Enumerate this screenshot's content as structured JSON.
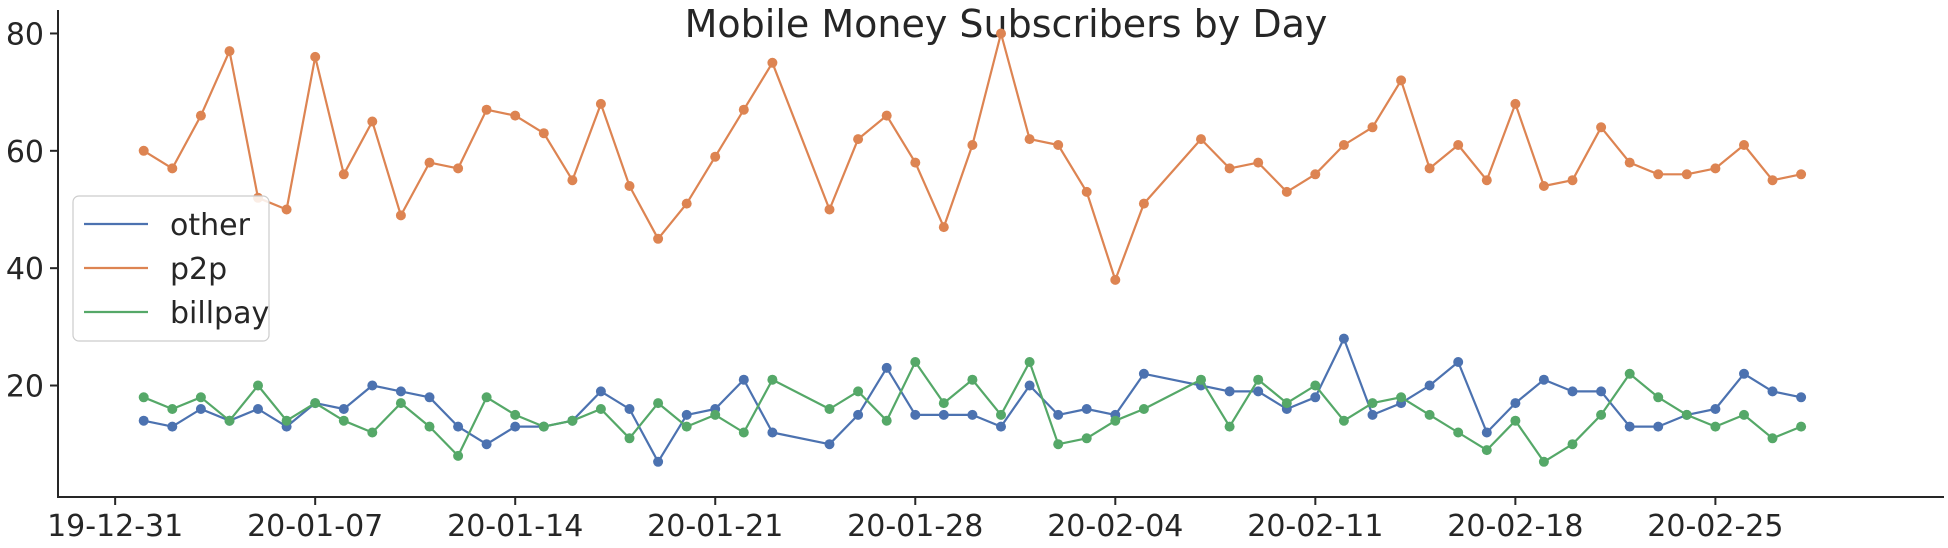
{
  "chart_data": {
    "type": "line",
    "title": "Mobile Money Subscribers by Day",
    "xlabel": "",
    "ylabel": "",
    "x_tick_labels": [
      "19-12-31",
      "20-01-07",
      "20-01-14",
      "20-01-21",
      "20-01-28",
      "20-02-04",
      "20-02-11",
      "20-02-18",
      "20-02-25"
    ],
    "x_tick_dates": [
      "2019-12-31",
      "2020-01-07",
      "2020-01-14",
      "2020-01-21",
      "2020-01-28",
      "2020-02-04",
      "2020-02-11",
      "2020-02-18",
      "2020-02-25"
    ],
    "xlim": [
      "2019-12-29",
      "2020-03-04"
    ],
    "y_ticks": [
      20,
      40,
      60,
      80
    ],
    "ylim": [
      1,
      84
    ],
    "grid": false,
    "legend_position": "center-left",
    "markers": true,
    "series": [
      {
        "name": "other",
        "color": "#4c72b0",
        "points": [
          [
            "2020-01-01",
            14
          ],
          [
            "2020-01-02",
            13
          ],
          [
            "2020-01-03",
            16
          ],
          [
            "2020-01-04",
            14
          ],
          [
            "2020-01-05",
            16
          ],
          [
            "2020-01-06",
            13
          ],
          [
            "2020-01-07",
            17
          ],
          [
            "2020-01-08",
            16
          ],
          [
            "2020-01-09",
            20
          ],
          [
            "2020-01-10",
            19
          ],
          [
            "2020-01-11",
            18
          ],
          [
            "2020-01-12",
            13
          ],
          [
            "2020-01-13",
            10
          ],
          [
            "2020-01-14",
            13
          ],
          [
            "2020-01-15",
            13
          ],
          [
            "2020-01-16",
            14
          ],
          [
            "2020-01-17",
            19
          ],
          [
            "2020-01-18",
            16
          ],
          [
            "2020-01-19",
            7
          ],
          [
            "2020-01-20",
            15
          ],
          [
            "2020-01-21",
            16
          ],
          [
            "2020-01-22",
            21
          ],
          [
            "2020-01-23",
            12
          ],
          [
            "2020-01-25",
            10
          ],
          [
            "2020-01-26",
            15
          ],
          [
            "2020-01-27",
            23
          ],
          [
            "2020-01-28",
            15
          ],
          [
            "2020-01-29",
            15
          ],
          [
            "2020-01-30",
            15
          ],
          [
            "2020-01-31",
            13
          ],
          [
            "2020-02-01",
            20
          ],
          [
            "2020-02-02",
            15
          ],
          [
            "2020-02-03",
            16
          ],
          [
            "2020-02-04",
            15
          ],
          [
            "2020-02-05",
            22
          ],
          [
            "2020-02-07",
            20
          ],
          [
            "2020-02-08",
            19
          ],
          [
            "2020-02-09",
            19
          ],
          [
            "2020-02-10",
            16
          ],
          [
            "2020-02-11",
            18
          ],
          [
            "2020-02-12",
            28
          ],
          [
            "2020-02-13",
            15
          ],
          [
            "2020-02-14",
            17
          ],
          [
            "2020-02-15",
            20
          ],
          [
            "2020-02-16",
            24
          ],
          [
            "2020-02-17",
            12
          ],
          [
            "2020-02-18",
            17
          ],
          [
            "2020-02-19",
            21
          ],
          [
            "2020-02-20",
            19
          ],
          [
            "2020-02-21",
            19
          ],
          [
            "2020-02-22",
            13
          ],
          [
            "2020-02-23",
            13
          ],
          [
            "2020-02-24",
            15
          ],
          [
            "2020-02-25",
            16
          ],
          [
            "2020-02-26",
            22
          ],
          [
            "2020-02-27",
            19
          ],
          [
            "2020-02-28",
            18
          ]
        ]
      },
      {
        "name": "p2p",
        "color": "#dd8452",
        "points": [
          [
            "2020-01-01",
            60
          ],
          [
            "2020-01-02",
            57
          ],
          [
            "2020-01-03",
            66
          ],
          [
            "2020-01-04",
            77
          ],
          [
            "2020-01-05",
            52
          ],
          [
            "2020-01-06",
            50
          ],
          [
            "2020-01-07",
            76
          ],
          [
            "2020-01-08",
            56
          ],
          [
            "2020-01-09",
            65
          ],
          [
            "2020-01-10",
            49
          ],
          [
            "2020-01-11",
            58
          ],
          [
            "2020-01-12",
            57
          ],
          [
            "2020-01-13",
            67
          ],
          [
            "2020-01-14",
            66
          ],
          [
            "2020-01-15",
            63
          ],
          [
            "2020-01-16",
            55
          ],
          [
            "2020-01-17",
            68
          ],
          [
            "2020-01-18",
            54
          ],
          [
            "2020-01-19",
            45
          ],
          [
            "2020-01-20",
            51
          ],
          [
            "2020-01-21",
            59
          ],
          [
            "2020-01-22",
            67
          ],
          [
            "2020-01-23",
            75
          ],
          [
            "2020-01-25",
            50
          ],
          [
            "2020-01-26",
            62
          ],
          [
            "2020-01-27",
            66
          ],
          [
            "2020-01-28",
            58
          ],
          [
            "2020-01-29",
            47
          ],
          [
            "2020-01-30",
            61
          ],
          [
            "2020-01-31",
            80
          ],
          [
            "2020-02-01",
            62
          ],
          [
            "2020-02-02",
            61
          ],
          [
            "2020-02-03",
            53
          ],
          [
            "2020-02-04",
            38
          ],
          [
            "2020-02-05",
            51
          ],
          [
            "2020-02-07",
            62
          ],
          [
            "2020-02-08",
            57
          ],
          [
            "2020-02-09",
            58
          ],
          [
            "2020-02-10",
            53
          ],
          [
            "2020-02-11",
            56
          ],
          [
            "2020-02-12",
            61
          ],
          [
            "2020-02-13",
            64
          ],
          [
            "2020-02-14",
            72
          ],
          [
            "2020-02-15",
            57
          ],
          [
            "2020-02-16",
            61
          ],
          [
            "2020-02-17",
            55
          ],
          [
            "2020-02-18",
            68
          ],
          [
            "2020-02-19",
            54
          ],
          [
            "2020-02-20",
            55
          ],
          [
            "2020-02-21",
            64
          ],
          [
            "2020-02-22",
            58
          ],
          [
            "2020-02-23",
            56
          ],
          [
            "2020-02-24",
            56
          ],
          [
            "2020-02-25",
            57
          ],
          [
            "2020-02-26",
            61
          ],
          [
            "2020-02-27",
            55
          ],
          [
            "2020-02-28",
            56
          ]
        ]
      },
      {
        "name": "billpay",
        "color": "#55a868",
        "points": [
          [
            "2020-01-01",
            18
          ],
          [
            "2020-01-02",
            16
          ],
          [
            "2020-01-03",
            18
          ],
          [
            "2020-01-04",
            14
          ],
          [
            "2020-01-05",
            20
          ],
          [
            "2020-01-06",
            14
          ],
          [
            "2020-01-07",
            17
          ],
          [
            "2020-01-08",
            14
          ],
          [
            "2020-01-09",
            12
          ],
          [
            "2020-01-10",
            17
          ],
          [
            "2020-01-11",
            13
          ],
          [
            "2020-01-12",
            8
          ],
          [
            "2020-01-13",
            18
          ],
          [
            "2020-01-14",
            15
          ],
          [
            "2020-01-15",
            13
          ],
          [
            "2020-01-16",
            14
          ],
          [
            "2020-01-17",
            16
          ],
          [
            "2020-01-18",
            11
          ],
          [
            "2020-01-19",
            17
          ],
          [
            "2020-01-20",
            13
          ],
          [
            "2020-01-21",
            15
          ],
          [
            "2020-01-22",
            12
          ],
          [
            "2020-01-23",
            21
          ],
          [
            "2020-01-25",
            16
          ],
          [
            "2020-01-26",
            19
          ],
          [
            "2020-01-27",
            14
          ],
          [
            "2020-01-28",
            24
          ],
          [
            "2020-01-29",
            17
          ],
          [
            "2020-01-30",
            21
          ],
          [
            "2020-01-31",
            15
          ],
          [
            "2020-02-01",
            24
          ],
          [
            "2020-02-02",
            10
          ],
          [
            "2020-02-03",
            11
          ],
          [
            "2020-02-04",
            14
          ],
          [
            "2020-02-05",
            16
          ],
          [
            "2020-02-07",
            21
          ],
          [
            "2020-02-08",
            13
          ],
          [
            "2020-02-09",
            21
          ],
          [
            "2020-02-10",
            17
          ],
          [
            "2020-02-11",
            20
          ],
          [
            "2020-02-12",
            14
          ],
          [
            "2020-02-13",
            17
          ],
          [
            "2020-02-14",
            18
          ],
          [
            "2020-02-15",
            15
          ],
          [
            "2020-02-16",
            12
          ],
          [
            "2020-02-17",
            9
          ],
          [
            "2020-02-18",
            14
          ],
          [
            "2020-02-19",
            7
          ],
          [
            "2020-02-20",
            10
          ],
          [
            "2020-02-21",
            15
          ],
          [
            "2020-02-22",
            22
          ],
          [
            "2020-02-23",
            18
          ],
          [
            "2020-02-24",
            15
          ],
          [
            "2020-02-25",
            13
          ],
          [
            "2020-02-26",
            15
          ],
          [
            "2020-02-27",
            11
          ],
          [
            "2020-02-28",
            13
          ]
        ]
      }
    ]
  }
}
